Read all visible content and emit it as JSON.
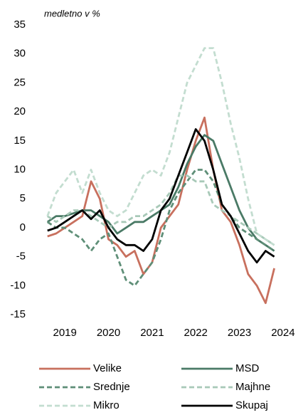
{
  "chart_data": {
    "type": "line",
    "subtitle": "medletno v %",
    "x": [
      2018.6,
      2018.8,
      2019.0,
      2019.2,
      2019.4,
      2019.6,
      2019.8,
      2020.0,
      2020.2,
      2020.4,
      2020.6,
      2020.8,
      2021.0,
      2021.2,
      2021.4,
      2021.6,
      2021.8,
      2022.0,
      2022.2,
      2022.4,
      2022.6,
      2022.8,
      2023.0,
      2023.2,
      2023.4,
      2023.6,
      2023.8
    ],
    "xlim": [
      2018.41,
      2024.36
    ],
    "xticks": [
      2019,
      2020,
      2021,
      2022,
      2023,
      2024
    ],
    "ylim": [
      -15,
      35
    ],
    "yticks": [
      -15,
      -10,
      -5,
      0,
      5,
      10,
      15,
      20,
      25,
      30,
      35
    ],
    "series": [
      {
        "name": "Velike",
        "color": "#c8705e",
        "dashed": false,
        "values": [
          -1.5,
          -1,
          0,
          1,
          2,
          8,
          5,
          -2,
          -3,
          -5,
          -4,
          -8,
          -6,
          0,
          2,
          4,
          10,
          15,
          19,
          10,
          3,
          1,
          -3,
          -8,
          -10,
          -13,
          -7
        ]
      },
      {
        "name": "MSD",
        "color": "#4a7a66",
        "dashed": false,
        "values": [
          1,
          2,
          2,
          2.5,
          3,
          3,
          2,
          1,
          -1,
          0,
          1,
          1,
          2,
          3,
          4,
          7,
          11,
          14,
          16,
          15,
          11,
          7,
          3,
          0,
          -2,
          -3,
          -4
        ]
      },
      {
        "name": "Srednje",
        "color": "#5f8f78",
        "dashed": true,
        "values": [
          1,
          0,
          0,
          -1,
          -2,
          -4,
          -2,
          -1,
          -5,
          -9,
          -10,
          -8,
          -6,
          -2,
          3,
          6,
          8,
          10,
          10,
          8,
          4,
          2,
          0,
          -1,
          -2,
          -3,
          -4
        ]
      },
      {
        "name": "Majhne",
        "color": "#a8c9b8",
        "dashed": true,
        "values": [
          2,
          1,
          2,
          3,
          3,
          2,
          1,
          0,
          1,
          1,
          2,
          2,
          3,
          4,
          6,
          9,
          9,
          8,
          8,
          4,
          3,
          2,
          1,
          0,
          -1,
          -2,
          -3
        ]
      },
      {
        "name": "Mikro",
        "color": "#c3ddd0",
        "dashed": true,
        "values": [
          2,
          6,
          8,
          10,
          6,
          10,
          6,
          3,
          2,
          3,
          6,
          9,
          10,
          9,
          13,
          19,
          25,
          28,
          31,
          31,
          25,
          18,
          12,
          5,
          -1,
          -2,
          -3
        ]
      },
      {
        "name": "Skupaj",
        "color": "#000000",
        "dashed": false,
        "values": [
          -0.5,
          0,
          1,
          2,
          3,
          1.5,
          3,
          0,
          -2,
          -3,
          -3,
          -4,
          -2,
          3,
          5,
          9,
          13,
          17,
          15,
          10,
          4,
          2,
          -1,
          -4,
          -6,
          -4,
          -5
        ]
      }
    ]
  }
}
